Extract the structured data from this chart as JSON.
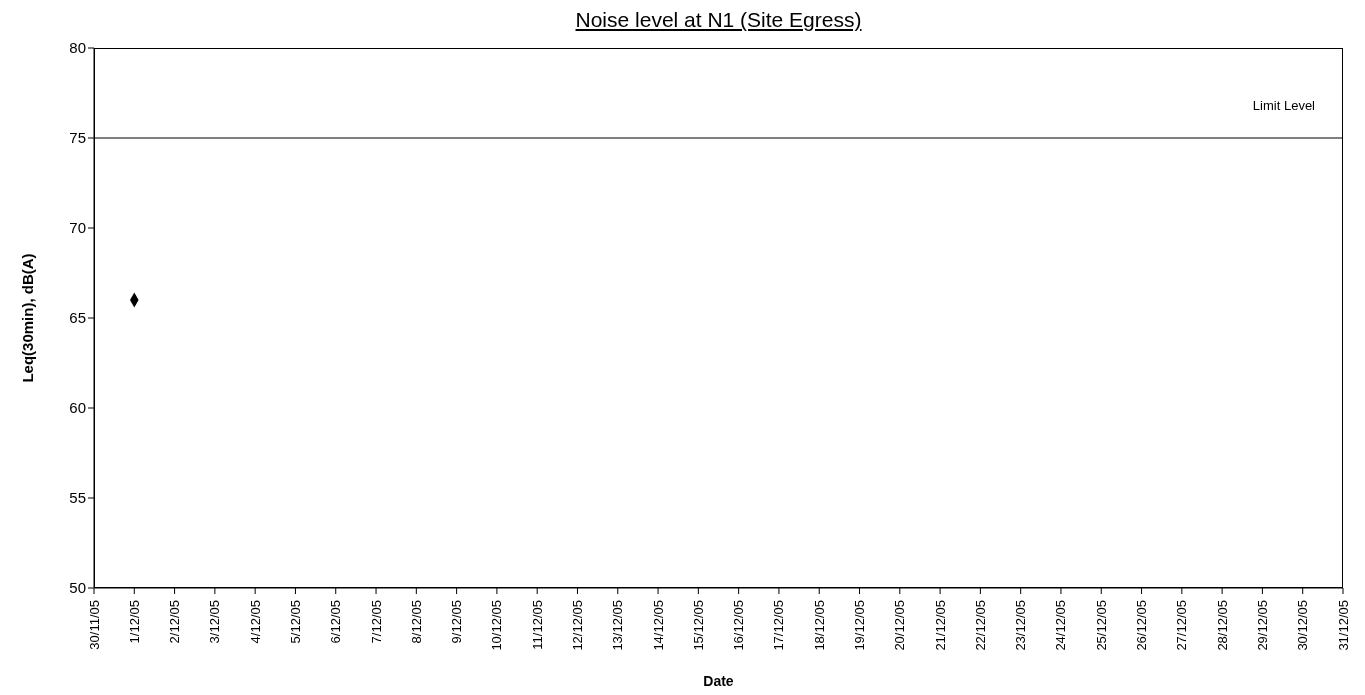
{
  "chart_data": {
    "type": "scatter",
    "title": "Noise level at N1 (Site Egress)",
    "xlabel": "Date",
    "ylabel": "Leq(30min), dB(A)",
    "x": [
      "--12-01"
    ],
    "series": [
      {
        "color": "#000000",
        "values": [
          66
        ]
      }
    ],
    "marker": "diamond",
    "grid": false,
    "legend": false,
    "xlim": [
      "--11-30",
      "--12-31"
    ],
    "xticks": [
      {
        "value": "--11-30",
        "label": "30/11/05"
      },
      {
        "value": "--12-01",
        "label": "1/12/05"
      },
      {
        "value": "--12-02",
        "label": "2/12/05"
      },
      {
        "value": "--12-03",
        "label": "3/12/05"
      },
      {
        "value": "--12-04",
        "label": "4/12/05"
      },
      {
        "value": "--12-05",
        "label": "5/12/05"
      },
      {
        "value": "--12-06",
        "label": "6/12/05"
      },
      {
        "value": "--12-07",
        "label": "7/12/05"
      },
      {
        "value": "--12-08",
        "label": "8/12/05"
      },
      {
        "value": "--12-09",
        "label": "9/12/05"
      },
      {
        "value": "--12-10",
        "label": "10/12/05"
      },
      {
        "value": "--12-11",
        "label": "11/12/05"
      },
      {
        "value": "--12-12",
        "label": "12/12/05"
      },
      {
        "value": "--12-13",
        "label": "13/12/05"
      },
      {
        "value": "--12-14",
        "label": "14/12/05"
      },
      {
        "value": "--12-15",
        "label": "15/12/05"
      },
      {
        "value": "--12-16",
        "label": "16/12/05"
      },
      {
        "value": "--12-17",
        "label": "17/12/05"
      },
      {
        "value": "--12-18",
        "label": "18/12/05"
      },
      {
        "value": "--12-19",
        "label": "19/12/05"
      },
      {
        "value": "--12-20",
        "label": "20/12/05"
      },
      {
        "value": "--12-21",
        "label": "21/12/05"
      },
      {
        "value": "--12-22",
        "label": "22/12/05"
      },
      {
        "value": "--12-23",
        "label": "23/12/05"
      },
      {
        "value": "--12-24",
        "label": "24/12/05"
      },
      {
        "value": "--12-25",
        "label": "25/12/05"
      },
      {
        "value": "--12-26",
        "label": "26/12/05"
      },
      {
        "value": "--12-27",
        "label": "27/12/05"
      },
      {
        "value": "--12-28",
        "label": "28/12/05"
      },
      {
        "value": "--12-29",
        "label": "29/12/05"
      },
      {
        "value": "--12-30",
        "label": "30/12/05"
      },
      {
        "value": "--12-31",
        "label": "31/12/05"
      }
    ],
    "ylim": [
      50,
      80
    ],
    "yticks": [
      50,
      55,
      60,
      65,
      70,
      75,
      80
    ],
    "ref_lines": [
      {
        "axis": "y",
        "value": 75,
        "label": "Limit Level",
        "color": "#000000"
      }
    ]
  }
}
